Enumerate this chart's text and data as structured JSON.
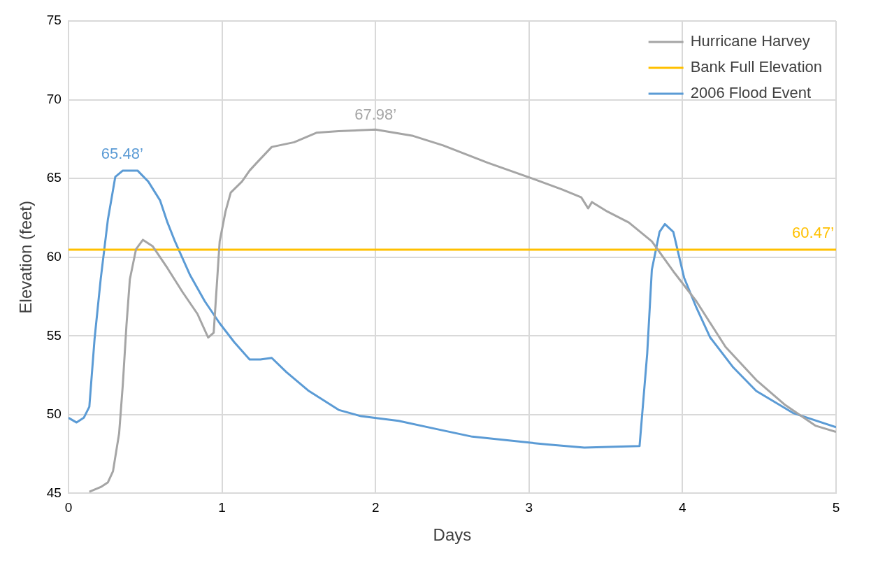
{
  "chart_data": {
    "type": "line",
    "xlabel": "Days",
    "ylabel": "Elevation (feet)",
    "xlim": [
      0,
      5
    ],
    "xticks": [
      0,
      1,
      2,
      3,
      4,
      5
    ],
    "ylim": [
      45,
      75
    ],
    "yticks": [
      45,
      50,
      55,
      60,
      65,
      70,
      75
    ],
    "grid": true,
    "legend": "top right",
    "marker": "none",
    "line_style": "solid",
    "series": [
      {
        "name": "Hurricane Harvey",
        "color": "#a5a5a5",
        "x": [
          0.136,
          0.21,
          0.257,
          0.29,
          0.33,
          0.354,
          0.378,
          0.4,
          0.44,
          0.485,
          0.548,
          0.645,
          0.742,
          0.84,
          0.91,
          0.946,
          0.985,
          1.023,
          1.057,
          1.13,
          1.18,
          1.227,
          1.324,
          1.47,
          1.615,
          1.76,
          2.0,
          2.245,
          2.44,
          2.73,
          3.02,
          3.215,
          3.34,
          3.385,
          3.41,
          3.51,
          3.65,
          3.8,
          3.94,
          4.09,
          4.28,
          4.48,
          4.67,
          4.865,
          5.0
        ],
        "values": [
          45.1,
          45.4,
          45.7,
          46.4,
          48.8,
          51.9,
          55.7,
          58.6,
          60.5,
          61.1,
          60.7,
          59.3,
          57.8,
          56.4,
          54.9,
          55.2,
          61.0,
          62.9,
          64.1,
          64.8,
          65.5,
          66.0,
          67.0,
          67.3,
          67.9,
          68.0,
          68.1,
          67.7,
          67.1,
          66.0,
          65.0,
          64.3,
          63.8,
          63.1,
          63.5,
          62.9,
          62.2,
          61.0,
          59.1,
          57.2,
          54.3,
          52.2,
          50.6,
          49.3,
          48.9
        ]
      },
      {
        "name": "Bank Full Elevation",
        "color": "#ffc000",
        "x": [
          0,
          5
        ],
        "values": [
          60.47,
          60.47
        ]
      },
      {
        "name": "2006 Flood Event",
        "color": "#5b9bd5",
        "x": [
          0,
          0.053,
          0.1,
          0.136,
          0.17,
          0.21,
          0.257,
          0.305,
          0.354,
          0.45,
          0.52,
          0.597,
          0.645,
          0.694,
          0.79,
          0.888,
          0.985,
          1.08,
          1.18,
          1.25,
          1.324,
          1.42,
          1.566,
          1.76,
          1.906,
          2.15,
          2.39,
          2.63,
          3.12,
          3.36,
          3.72,
          3.77,
          3.8,
          3.85,
          3.885,
          3.94,
          4.01,
          4.09,
          4.18,
          4.33,
          4.48,
          4.72,
          5.0
        ],
        "values": [
          49.8,
          49.5,
          49.8,
          50.5,
          54.8,
          58.6,
          62.4,
          65.1,
          65.5,
          65.5,
          64.8,
          63.6,
          62.2,
          61.0,
          58.9,
          57.2,
          55.8,
          54.6,
          53.5,
          53.5,
          53.6,
          52.7,
          51.5,
          50.3,
          49.9,
          49.6,
          49.1,
          48.6,
          48.1,
          47.9,
          48.0,
          53.9,
          59.2,
          61.6,
          62.1,
          61.6,
          58.7,
          56.8,
          54.9,
          53.0,
          51.5,
          50.1,
          49.2
        ]
      }
    ],
    "annotations": [
      {
        "text": "65.48’",
        "x": 0.35,
        "y": 65.48
      },
      {
        "text": "67.98’",
        "x": 2.0,
        "y": 67.98
      },
      {
        "text": "60.47’",
        "x": 4.85,
        "y": 60.47
      }
    ]
  }
}
